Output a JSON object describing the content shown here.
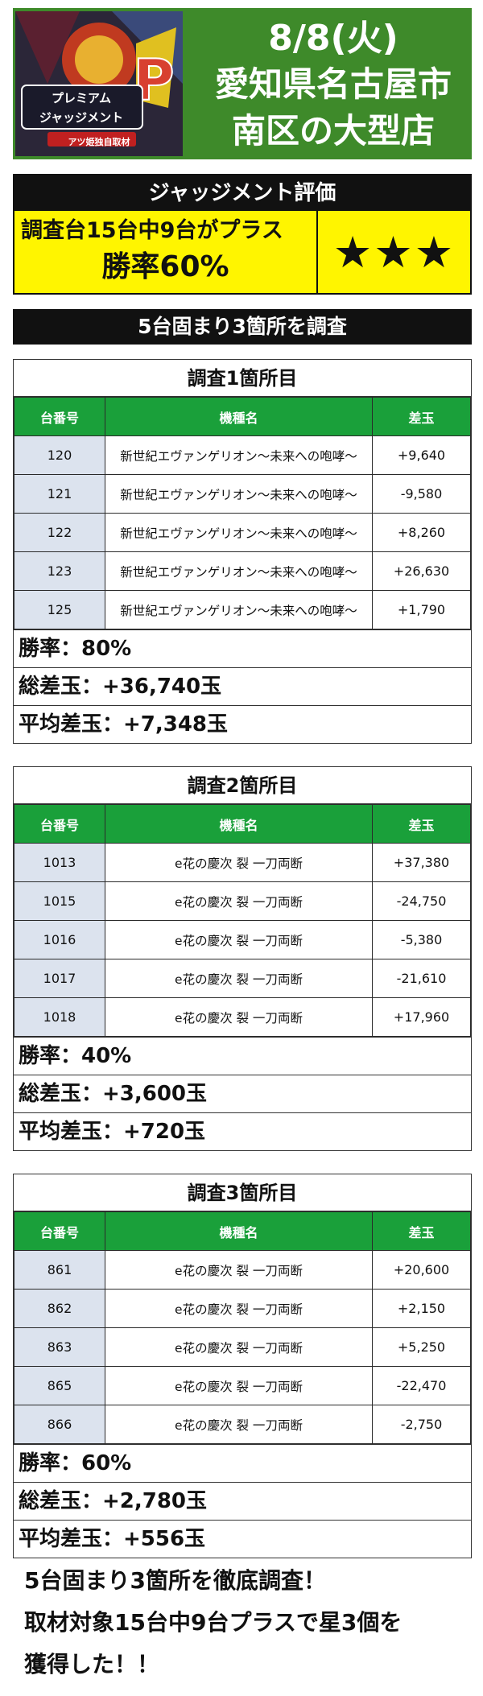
{
  "header": {
    "logo_text": "プレミアムジャッジメント",
    "logo_sub": "アツ姫独自取材",
    "date": "8/8(火)",
    "line1": "愛知県名古屋市",
    "line2": "南区の大型店"
  },
  "judgment": {
    "title": "ジャッジメント評価",
    "result_line": "調査台15台中9台がプラス",
    "win_rate": "勝率60%",
    "stars": "★★★"
  },
  "banner": "5台固まり3箇所を調査",
  "table_headers": {
    "num": "台番号",
    "model": "機種名",
    "diff": "差玉"
  },
  "surveys": [
    {
      "title": "調査1箇所目",
      "rows": [
        {
          "num": "120",
          "model": "新世紀エヴァンゲリオン〜未来への咆哮〜",
          "diff": "+9,640"
        },
        {
          "num": "121",
          "model": "新世紀エヴァンゲリオン〜未来への咆哮〜",
          "diff": "-9,580"
        },
        {
          "num": "122",
          "model": "新世紀エヴァンゲリオン〜未来への咆哮〜",
          "diff": "+8,260"
        },
        {
          "num": "123",
          "model": "新世紀エヴァンゲリオン〜未来への咆哮〜",
          "diff": "+26,630"
        },
        {
          "num": "125",
          "model": "新世紀エヴァンゲリオン〜未来への咆哮〜",
          "diff": "+1,790"
        }
      ],
      "win_rate": "勝率：80%",
      "total": "総差玉：+36,740玉",
      "average": "平均差玉：+7,348玉"
    },
    {
      "title": "調査2箇所目",
      "rows": [
        {
          "num": "1013",
          "model": "e花の慶次 裂 一刀両断",
          "diff": "+37,380"
        },
        {
          "num": "1015",
          "model": "e花の慶次 裂 一刀両断",
          "diff": "-24,750"
        },
        {
          "num": "1016",
          "model": "e花の慶次 裂 一刀両断",
          "diff": "-5,380"
        },
        {
          "num": "1017",
          "model": "e花の慶次 裂 一刀両断",
          "diff": "-21,610"
        },
        {
          "num": "1018",
          "model": "e花の慶次 裂 一刀両断",
          "diff": "+17,960"
        }
      ],
      "win_rate": "勝率：40%",
      "total": "総差玉：+3,600玉",
      "average": "平均差玉：+720玉"
    },
    {
      "title": "調査3箇所目",
      "rows": [
        {
          "num": "861",
          "model": "e花の慶次 裂 一刀両断",
          "diff": "+20,600"
        },
        {
          "num": "862",
          "model": "e花の慶次 裂 一刀両断",
          "diff": "+2,150"
        },
        {
          "num": "863",
          "model": "e花の慶次 裂 一刀両断",
          "diff": "+5,250"
        },
        {
          "num": "865",
          "model": "e花の慶次 裂 一刀両断",
          "diff": "-22,470"
        },
        {
          "num": "866",
          "model": "e花の慶次 裂 一刀両断",
          "diff": "-2,750"
        }
      ],
      "win_rate": "勝率：60%",
      "total": "総差玉：+2,780玉",
      "average": "平均差玉：+556玉"
    }
  ],
  "footer": {
    "line1": "5台固まり3箇所を徹底調査！",
    "line2": "取材対象15台中9台プラスで星3個を",
    "line3": "獲得した！！"
  },
  "colors": {
    "header_bg": "#3e8a2a",
    "table_header_bg": "#1aa03a",
    "judge_bg": "#fff500",
    "num_cell_bg": "#dce3ee"
  }
}
